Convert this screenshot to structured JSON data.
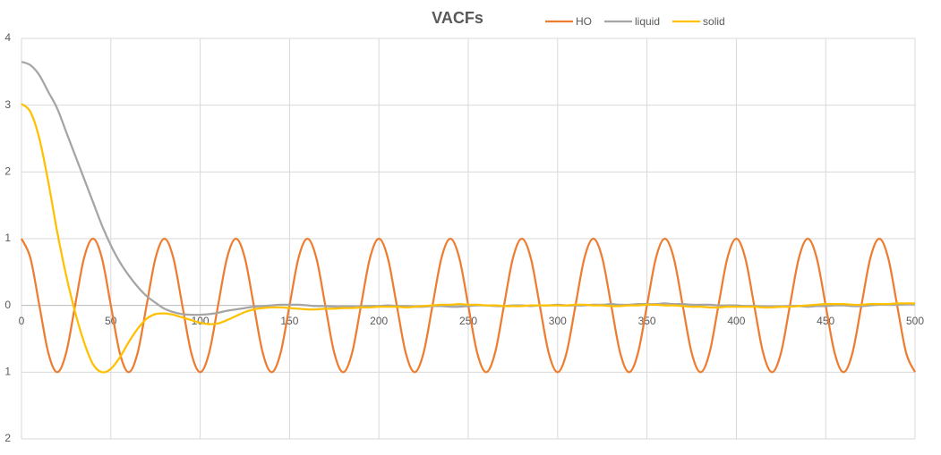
{
  "chart_data": {
    "type": "line",
    "title": "VACFs",
    "x": [
      0,
      5,
      10,
      15,
      20,
      25,
      30,
      35,
      40,
      45,
      50,
      55,
      60,
      65,
      70,
      75,
      80,
      85,
      90,
      95,
      100,
      105,
      110,
      115,
      120,
      125,
      130,
      135,
      140,
      145,
      150,
      155,
      160,
      165,
      170,
      175,
      180,
      185,
      190,
      195,
      200,
      205,
      210,
      215,
      220,
      225,
      230,
      235,
      240,
      245,
      250,
      255,
      260,
      265,
      270,
      275,
      280,
      285,
      290,
      295,
      300,
      305,
      310,
      315,
      320,
      325,
      330,
      335,
      340,
      345,
      350,
      355,
      360,
      365,
      370,
      375,
      380,
      385,
      390,
      395,
      400,
      405,
      410,
      415,
      420,
      425,
      430,
      435,
      440,
      445,
      450,
      455,
      460,
      465,
      470,
      475,
      480,
      485,
      490,
      495,
      500
    ],
    "series": [
      {
        "name": "HO",
        "color": "#ed7d31",
        "values": [
          1,
          0.71,
          0,
          -0.71,
          -1,
          -0.71,
          0,
          0.71,
          1,
          0.71,
          0,
          -0.71,
          -1,
          -0.71,
          0,
          0.71,
          1,
          0.71,
          0,
          -0.71,
          -1,
          -0.71,
          0,
          0.71,
          1,
          0.71,
          0,
          -0.71,
          -1,
          -0.71,
          0,
          0.71,
          1,
          0.71,
          0,
          -0.71,
          -1,
          -0.71,
          0,
          0.71,
          1,
          0.71,
          0,
          -0.71,
          -1,
          -0.71,
          0,
          0.71,
          1,
          0.71,
          0,
          -0.71,
          -1,
          -0.71,
          0,
          0.71,
          1,
          0.71,
          0,
          -0.71,
          -1,
          -0.71,
          0,
          0.71,
          1,
          0.71,
          0,
          -0.71,
          -1,
          -0.71,
          0,
          0.71,
          1,
          0.71,
          0,
          -0.71,
          -1,
          -0.71,
          0,
          0.71,
          1,
          0.71,
          0,
          -0.71,
          -1,
          -0.71,
          0,
          0.71,
          1,
          0.71,
          0,
          -0.71,
          -1,
          -0.71,
          0,
          0.71,
          1,
          0.71,
          0,
          -0.71,
          -1
        ]
      },
      {
        "name": "liquid",
        "color": "#a5a5a5",
        "values": [
          3.65,
          3.6,
          3.45,
          3.2,
          2.95,
          2.6,
          2.25,
          1.9,
          1.55,
          1.2,
          0.9,
          0.65,
          0.45,
          0.28,
          0.14,
          0.04,
          -0.05,
          -0.1,
          -0.13,
          -0.14,
          -0.14,
          -0.13,
          -0.11,
          -0.08,
          -0.06,
          -0.04,
          -0.02,
          -0.01,
          0,
          0.01,
          0.01,
          0.01,
          0,
          -0.01,
          -0.01,
          -0.02,
          -0.02,
          -0.02,
          -0.02,
          -0.01,
          -0.01,
          0,
          -0.01,
          -0.01,
          -0.02,
          -0.02,
          -0.01,
          -0.01,
          -0.02,
          -0.02,
          -0.01,
          0,
          0,
          -0.01,
          -0.01,
          0,
          0,
          -0.01,
          0,
          0,
          0.01,
          0,
          0,
          0,
          0.01,
          0.01,
          0.02,
          0.01,
          0.01,
          0.02,
          0.02,
          0.02,
          0.03,
          0.02,
          0.02,
          0.01,
          0.01,
          0.01,
          0,
          0,
          0,
          -0.01,
          -0.01,
          -0.02,
          -0.02,
          -0.02,
          -0.01,
          -0.01,
          -0.02,
          -0.01,
          -0.01,
          0,
          0,
          -0.01,
          -0.01,
          0,
          0.01,
          0.01,
          0.01,
          0.02,
          0.02
        ]
      },
      {
        "name": "solid",
        "color": "#ffc000",
        "values": [
          3.02,
          2.9,
          2.5,
          1.85,
          1.1,
          0.45,
          -0.1,
          -0.55,
          -0.88,
          -1.0,
          -0.95,
          -0.78,
          -0.55,
          -0.35,
          -0.2,
          -0.13,
          -0.12,
          -0.14,
          -0.18,
          -0.22,
          -0.26,
          -0.28,
          -0.27,
          -0.22,
          -0.16,
          -0.1,
          -0.06,
          -0.04,
          -0.03,
          -0.03,
          -0.04,
          -0.05,
          -0.06,
          -0.06,
          -0.05,
          -0.05,
          -0.04,
          -0.04,
          -0.03,
          -0.03,
          -0.02,
          -0.02,
          -0.02,
          -0.03,
          -0.02,
          -0.01,
          0,
          0.01,
          0.01,
          0.02,
          0.01,
          0.01,
          0,
          0,
          -0.01,
          -0.01,
          -0.01,
          0,
          0,
          0,
          0,
          0,
          0.01,
          0.01,
          0,
          0,
          -0.01,
          -0.01,
          0,
          0,
          0.01,
          0.01,
          0,
          0,
          -0.01,
          -0.02,
          -0.02,
          -0.03,
          -0.03,
          -0.02,
          -0.02,
          -0.02,
          -0.02,
          -0.03,
          -0.03,
          -0.02,
          -0.02,
          -0.01,
          0,
          0.01,
          0.02,
          0.02,
          0.02,
          0.01,
          0.01,
          0.02,
          0.02,
          0.02,
          0.03,
          0.03,
          0.03
        ]
      }
    ],
    "xlim": [
      0,
      500
    ],
    "xticks": [
      0,
      50,
      100,
      150,
      200,
      250,
      300,
      350,
      400,
      450,
      500
    ],
    "ylim": [
      -2,
      4
    ],
    "yticks": [
      4,
      3,
      2,
      1,
      0,
      {
        "value": -1,
        "label": "1"
      },
      {
        "value": -2,
        "label": "2"
      }
    ],
    "grid": true
  }
}
